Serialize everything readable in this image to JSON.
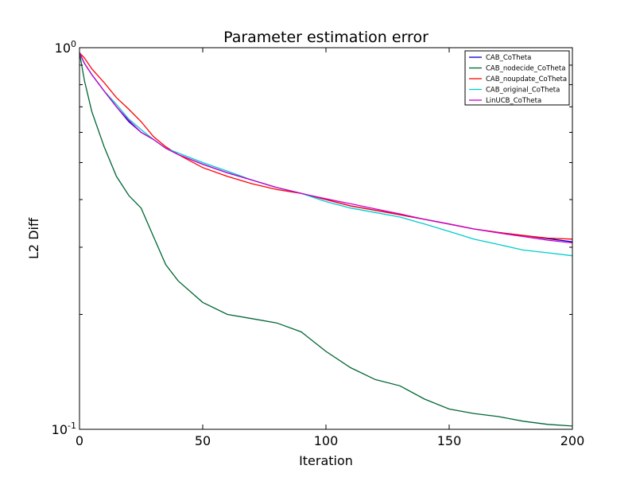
{
  "chart_data": {
    "type": "line",
    "title": "Parameter estimation error",
    "xlabel": "Iteration",
    "ylabel": "L2 Diff",
    "xlim": [
      0,
      200
    ],
    "ylim": [
      0.1,
      1.0
    ],
    "yscale": "log",
    "grid": false,
    "legend_position": "top-right",
    "x_ticks": [
      {
        "value": 0,
        "label": "0"
      },
      {
        "value": 50,
        "label": "50"
      },
      {
        "value": 100,
        "label": "100"
      },
      {
        "value": 150,
        "label": "150"
      },
      {
        "value": 200,
        "label": "200"
      }
    ],
    "y_ticks": [
      {
        "value": 1.0,
        "base": "10",
        "exp": "0"
      },
      {
        "value": 0.1,
        "base": "10",
        "exp": "-1"
      }
    ],
    "x": [
      0,
      2,
      5,
      10,
      15,
      20,
      25,
      30,
      35,
      40,
      50,
      60,
      70,
      80,
      90,
      100,
      110,
      120,
      130,
      140,
      150,
      160,
      170,
      180,
      190,
      200
    ],
    "series": [
      {
        "name": "CAB_CoTheta",
        "color": "#0000cc",
        "values": [
          0.97,
          0.91,
          0.85,
          0.77,
          0.7,
          0.64,
          0.6,
          0.575,
          0.545,
          0.525,
          0.495,
          0.47,
          0.45,
          0.43,
          0.415,
          0.4,
          0.385,
          0.375,
          0.365,
          0.355,
          0.345,
          0.335,
          0.328,
          0.322,
          0.316,
          0.31
        ]
      },
      {
        "name": "CAB_nodecide_CoTheta",
        "color": "#006633",
        "values": [
          0.97,
          0.82,
          0.68,
          0.55,
          0.46,
          0.41,
          0.38,
          0.32,
          0.27,
          0.245,
          0.215,
          0.2,
          0.195,
          0.19,
          0.18,
          0.16,
          0.145,
          0.135,
          0.13,
          0.12,
          0.113,
          0.11,
          0.108,
          0.105,
          0.103,
          0.102
        ]
      },
      {
        "name": "CAB_noupdate_CoTheta",
        "color": "#ff0000",
        "values": [
          0.97,
          0.94,
          0.88,
          0.81,
          0.74,
          0.69,
          0.64,
          0.585,
          0.55,
          0.525,
          0.485,
          0.46,
          0.44,
          0.425,
          0.415,
          0.4,
          0.385,
          0.375,
          0.365,
          0.355,
          0.345,
          0.335,
          0.328,
          0.322,
          0.317,
          0.315
        ]
      },
      {
        "name": "CAB_original_CoTheta",
        "color": "#00cccc",
        "values": [
          0.97,
          0.91,
          0.85,
          0.77,
          0.71,
          0.65,
          0.61,
          0.575,
          0.545,
          0.53,
          0.5,
          0.475,
          0.45,
          0.43,
          0.415,
          0.395,
          0.38,
          0.37,
          0.36,
          0.345,
          0.33,
          0.315,
          0.305,
          0.295,
          0.29,
          0.285
        ]
      },
      {
        "name": "LinUCB_CoTheta",
        "color": "#cc00cc",
        "values": [
          0.97,
          0.91,
          0.85,
          0.77,
          0.7,
          0.645,
          0.6,
          0.575,
          0.545,
          0.525,
          0.495,
          0.47,
          0.45,
          0.43,
          0.415,
          0.402,
          0.39,
          0.378,
          0.367,
          0.355,
          0.345,
          0.335,
          0.327,
          0.32,
          0.313,
          0.308
        ]
      }
    ]
  }
}
